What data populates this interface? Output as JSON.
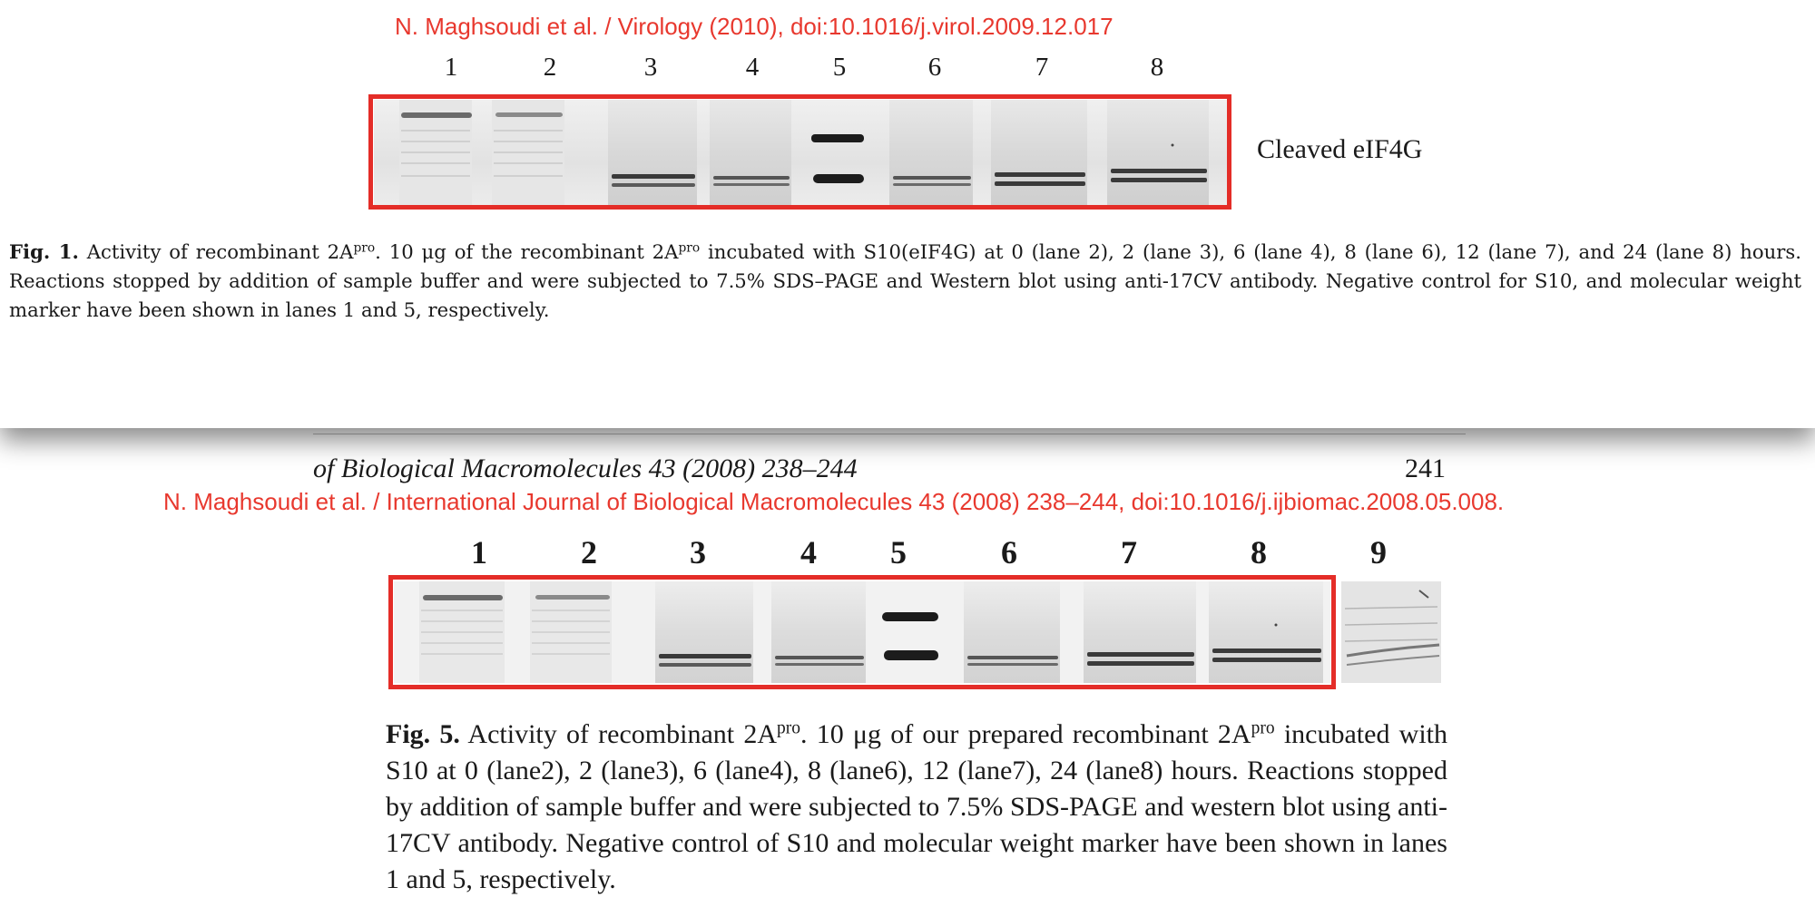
{
  "top_figure": {
    "citation": "N. Maghsoudi et al. / Virology (2010), doi:10.1016/j.virol.2009.12.017",
    "lanes": [
      "1",
      "2",
      "3",
      "4",
      "5",
      "6",
      "7",
      "8"
    ],
    "band_label": "Cleaved eIF4G",
    "caption": {
      "fig_label": "Fig. 1.",
      "part1": " Activity of recombinant 2A",
      "sup1": "pro",
      "part2": ". 10 μg of the recombinant 2A",
      "sup2": "pro",
      "part3": " incubated with S10(eIF4G) at 0 (lane 2), 2 (lane 3), 6 (lane 4), 8 (lane 6), 12 (lane 7), and 24 (lane 8) hours. Reactions stopped by addition of sample buffer and were subjected to 7.5% SDS–PAGE and Western blot using anti-17CV antibody. Negative control for S10, and molecular weight marker have been shown in lanes 1 and 5, respectively."
    }
  },
  "bottom_figure": {
    "journal_header": "of Biological Macromolecules 43 (2008) 238–244",
    "page_number": "241",
    "citation": "N. Maghsoudi et al. / International Journal of Biological Macromolecules 43 (2008) 238–244, doi:10.1016/j.ijbiomac.2008.05.008.",
    "lanes": [
      "1",
      "2",
      "3",
      "4",
      "5",
      "6",
      "7",
      "8",
      "9"
    ],
    "caption": {
      "fig_label": "Fig. 5.",
      "part1": "  Activity of recombinant 2A",
      "sup1": "pro",
      "part2": ". 10 μg of our prepared recombinant 2A",
      "sup2": "pro",
      "part3": " incubated with S10 at 0 (lane2), 2 (lane3), 6 (lane4), 8 (lane6), 12 (lane7), 24 (lane8) hours. Reactions stopped by addition of sample buffer and were subjected to 7.5% SDS-PAGE and western blot using anti-17CV antibody. Negative control of S10 and molecular weight marker have been shown in lanes 1 and 5, respectively."
    }
  },
  "colors": {
    "highlight_box": "#e42d28",
    "citation_text": "#e8382e",
    "band": "#1c1c1c"
  }
}
